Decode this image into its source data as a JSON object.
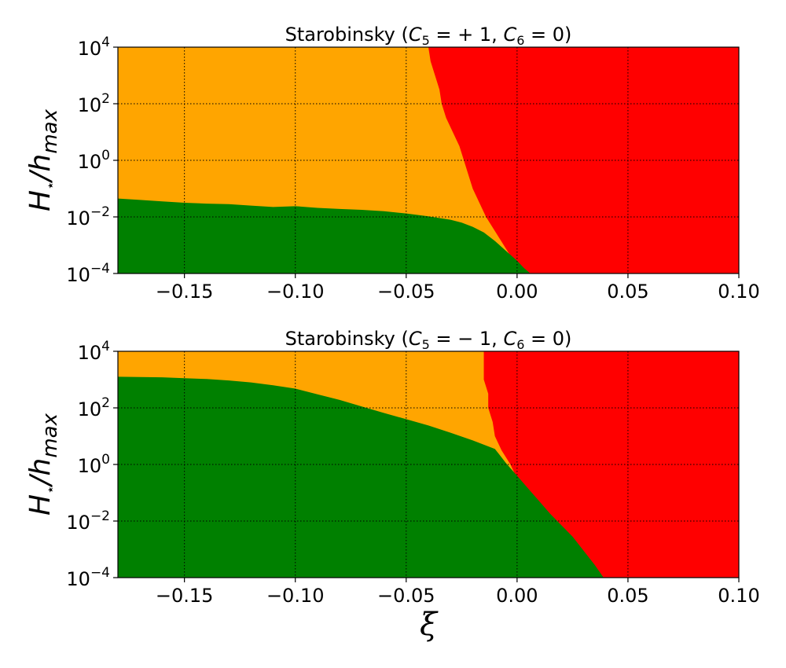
{
  "chart_data": [
    {
      "type": "area",
      "title": "Starobinsky ($C_5 = +1$, $C_6 = 0$)",
      "title_parts": {
        "pre": "Starobinsky (",
        "c5": "C",
        "c5sub": "5",
        "c5val": " = + 1, ",
        "c6": "C",
        "c6sub": "6",
        "c6val": " = 0)"
      },
      "ylabel": {
        "main": "H",
        "star": "⋆",
        "slash": "/h",
        "sub": "max"
      },
      "xlabel": "",
      "xlim": [
        -0.18,
        0.1
      ],
      "ylim_log10": [
        -4,
        4
      ],
      "y_scale": "log",
      "grid": true,
      "x_ticks": [
        -0.15,
        -0.1,
        -0.05,
        0.0,
        0.05,
        0.1
      ],
      "x_tick_labels": [
        "−0.15",
        "−0.10",
        "−0.05",
        "0.00",
        "0.05",
        "0.10"
      ],
      "y_ticks_log10": [
        -4,
        -2,
        0,
        2,
        4
      ],
      "y_tick_labels": [
        {
          "base": "10",
          "exp": "−4"
        },
        {
          "base": "10",
          "exp": "−2"
        },
        {
          "base": "10",
          "exp": "0"
        },
        {
          "base": "10",
          "exp": "2"
        },
        {
          "base": "10",
          "exp": "4"
        }
      ],
      "regions": [
        {
          "color": "#008000",
          "label": "green"
        },
        {
          "color": "#ffa500",
          "label": "orange"
        },
        {
          "color": "#ff0000",
          "label": "red"
        }
      ],
      "green_boundary_log10": {
        "x": [
          -0.18,
          -0.17,
          -0.16,
          -0.15,
          -0.14,
          -0.13,
          -0.12,
          -0.11,
          -0.1,
          -0.09,
          -0.08,
          -0.07,
          -0.06,
          -0.05,
          -0.04,
          -0.03,
          -0.025,
          -0.02,
          -0.015,
          -0.01,
          -0.005,
          0.0,
          0.003,
          0.006
        ],
        "y": [
          -1.35,
          -1.4,
          -1.45,
          -1.5,
          -1.53,
          -1.55,
          -1.6,
          -1.65,
          -1.62,
          -1.68,
          -1.72,
          -1.75,
          -1.8,
          -1.88,
          -1.98,
          -2.1,
          -2.2,
          -2.35,
          -2.55,
          -2.85,
          -3.2,
          -3.55,
          -3.8,
          -4.0
        ]
      },
      "red_boundary_log10": {
        "y": [
          4.0,
          3.5,
          3.0,
          2.5,
          2.0,
          1.5,
          1.0,
          0.5,
          0.0,
          -0.5,
          -1.0,
          -1.5,
          -2.0,
          -2.5,
          -3.0,
          -3.5,
          -4.0
        ],
        "x": [
          -0.04,
          -0.039,
          -0.037,
          -0.035,
          -0.034,
          -0.032,
          -0.029,
          -0.026,
          -0.024,
          -0.022,
          -0.02,
          -0.017,
          -0.014,
          -0.01,
          -0.006,
          -0.002,
          0.006
        ]
      }
    },
    {
      "type": "area",
      "title": "Starobinsky ($C_5 = -1$, $C_6 = 0$)",
      "title_parts": {
        "pre": "Starobinsky (",
        "c5": "C",
        "c5sub": "5",
        "c5val": " = − 1, ",
        "c6": "C",
        "c6sub": "6",
        "c6val": " = 0)"
      },
      "ylabel": {
        "main": "H",
        "star": "⋆",
        "slash": "/h",
        "sub": "max"
      },
      "xlabel": "ξ",
      "xlim": [
        -0.18,
        0.1
      ],
      "ylim_log10": [
        -4,
        4
      ],
      "y_scale": "log",
      "grid": true,
      "x_ticks": [
        -0.15,
        -0.1,
        -0.05,
        0.0,
        0.05,
        0.1
      ],
      "x_tick_labels": [
        "−0.15",
        "−0.10",
        "−0.05",
        "0.00",
        "0.05",
        "0.10"
      ],
      "y_ticks_log10": [
        -4,
        -2,
        0,
        2,
        4
      ],
      "y_tick_labels": [
        {
          "base": "10",
          "exp": "−4"
        },
        {
          "base": "10",
          "exp": "−2"
        },
        {
          "base": "10",
          "exp": "0"
        },
        {
          "base": "10",
          "exp": "2"
        },
        {
          "base": "10",
          "exp": "4"
        }
      ],
      "regions": [
        {
          "color": "#008000",
          "label": "green"
        },
        {
          "color": "#ffa500",
          "label": "orange"
        },
        {
          "color": "#ff0000",
          "label": "red"
        }
      ],
      "green_boundary_log10": {
        "x": [
          -0.18,
          -0.16,
          -0.15,
          -0.14,
          -0.13,
          -0.12,
          -0.11,
          -0.1,
          -0.09,
          -0.08,
          -0.07,
          -0.06,
          -0.05,
          -0.04,
          -0.03,
          -0.02,
          -0.01,
          -0.005,
          0.0,
          0.005,
          0.01,
          0.015,
          0.02,
          0.025,
          0.03,
          0.035,
          0.039
        ],
        "y": [
          3.1,
          3.08,
          3.05,
          3.02,
          2.97,
          2.9,
          2.8,
          2.68,
          2.48,
          2.28,
          2.05,
          1.82,
          1.6,
          1.38,
          1.12,
          0.85,
          0.55,
          0.05,
          -0.4,
          -0.85,
          -1.3,
          -1.75,
          -2.15,
          -2.55,
          -3.05,
          -3.55,
          -4.0
        ]
      },
      "red_boundary_log10": {
        "y": [
          4.0,
          3.5,
          3.0,
          2.5,
          2.0,
          1.5,
          1.0,
          0.5,
          0.0,
          -0.5,
          -1.0,
          -1.5,
          -2.0,
          -2.5,
          -3.0,
          -3.5,
          -4.0
        ],
        "x": [
          -0.015,
          -0.015,
          -0.015,
          -0.013,
          -0.013,
          -0.011,
          -0.01,
          -0.007,
          -0.003,
          0.0,
          0.005,
          0.01,
          0.016,
          0.024,
          0.028,
          0.032,
          0.039
        ]
      }
    }
  ]
}
